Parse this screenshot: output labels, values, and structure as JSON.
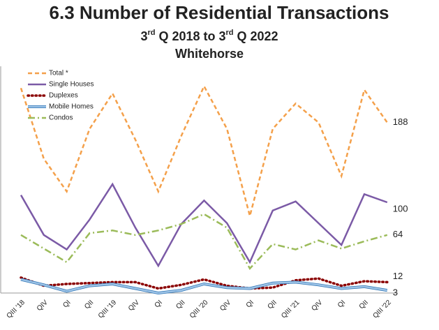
{
  "chart_data": {
    "type": "line",
    "title": "6.3 Number of Residential Transactions",
    "subtitle": "3rd Q 2018 to 3rd Q 2022",
    "subtitle2": "Whitehorse",
    "categories": [
      "QIII '18",
      "QIV",
      "QI",
      "QII",
      "QIII '19",
      "QIV",
      "QI",
      "QII",
      "QIII '20",
      "QIV",
      "QI",
      "QII",
      "QIII '21",
      "QIV",
      "QI",
      "QII",
      "QIII '22"
    ],
    "ylim": [
      0,
      250
    ],
    "series": [
      {
        "name": "Total *",
        "color": "#f4a04a",
        "dash": "6,4",
        "values": [
          226,
          148,
          112,
          181,
          220,
          169,
          112,
          173,
          228,
          181,
          85,
          181,
          209,
          188,
          129,
          224,
          188
        ]
      },
      {
        "name": "Single Houses",
        "color": "#7b5aa6",
        "dash": "",
        "values": [
          108,
          64,
          48,
          81,
          120,
          72,
          30,
          76,
          102,
          77,
          34,
          91,
          101,
          77,
          53,
          109,
          100
        ]
      },
      {
        "name": "Duplexes",
        "color": "#8b0000",
        "dash": "1.5,4",
        "values": [
          17,
          8,
          10,
          11,
          12,
          12,
          5,
          9,
          15,
          8,
          5,
          6,
          14,
          16,
          8,
          13,
          12
        ]
      },
      {
        "name": "Mobile Homes",
        "color": "#9dc3e6",
        "dash": "",
        "values": [
          15,
          9,
          2,
          8,
          10,
          5,
          0,
          3,
          10,
          6,
          5,
          11,
          12,
          9,
          5,
          7,
          3
        ]
      },
      {
        "name": "Condos",
        "color": "#9bbb59",
        "dash": "10,4,2,4",
        "values": [
          64,
          49,
          34,
          66,
          69,
          64,
          69,
          76,
          87,
          72,
          27,
          54,
          48,
          58,
          49,
          57,
          64
        ]
      }
    ]
  }
}
